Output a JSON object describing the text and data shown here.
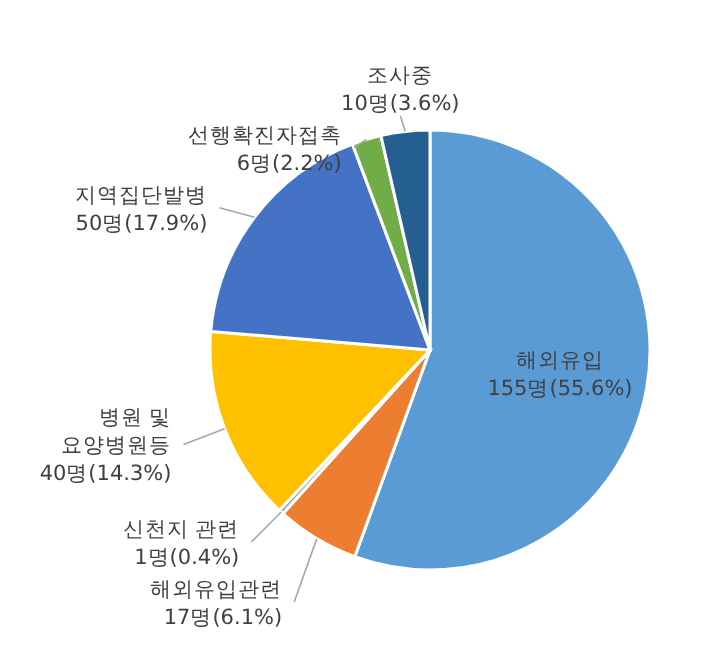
{
  "chart_data": {
    "type": "pie",
    "categories": [
      "해외유입",
      "해외유입관련",
      "신천지 관련",
      "병원 및\n요양병원등",
      "지역집단발병",
      "선행확진자접촉",
      "조사중"
    ],
    "values": [
      155,
      17,
      1,
      40,
      50,
      6,
      10
    ],
    "value_labels": [
      "155명(55.6%)",
      "17명(6.1%)",
      "1명(0.4%)",
      "40명(14.3%)",
      "50명(17.9%)",
      "6명(2.2%)",
      "10명(3.6%)"
    ],
    "colors": [
      "#5b9bd5",
      "#ed7d31",
      "#a5a5a5",
      "#ffc000",
      "#4472c4",
      "#70ad47",
      "#255e91"
    ]
  }
}
